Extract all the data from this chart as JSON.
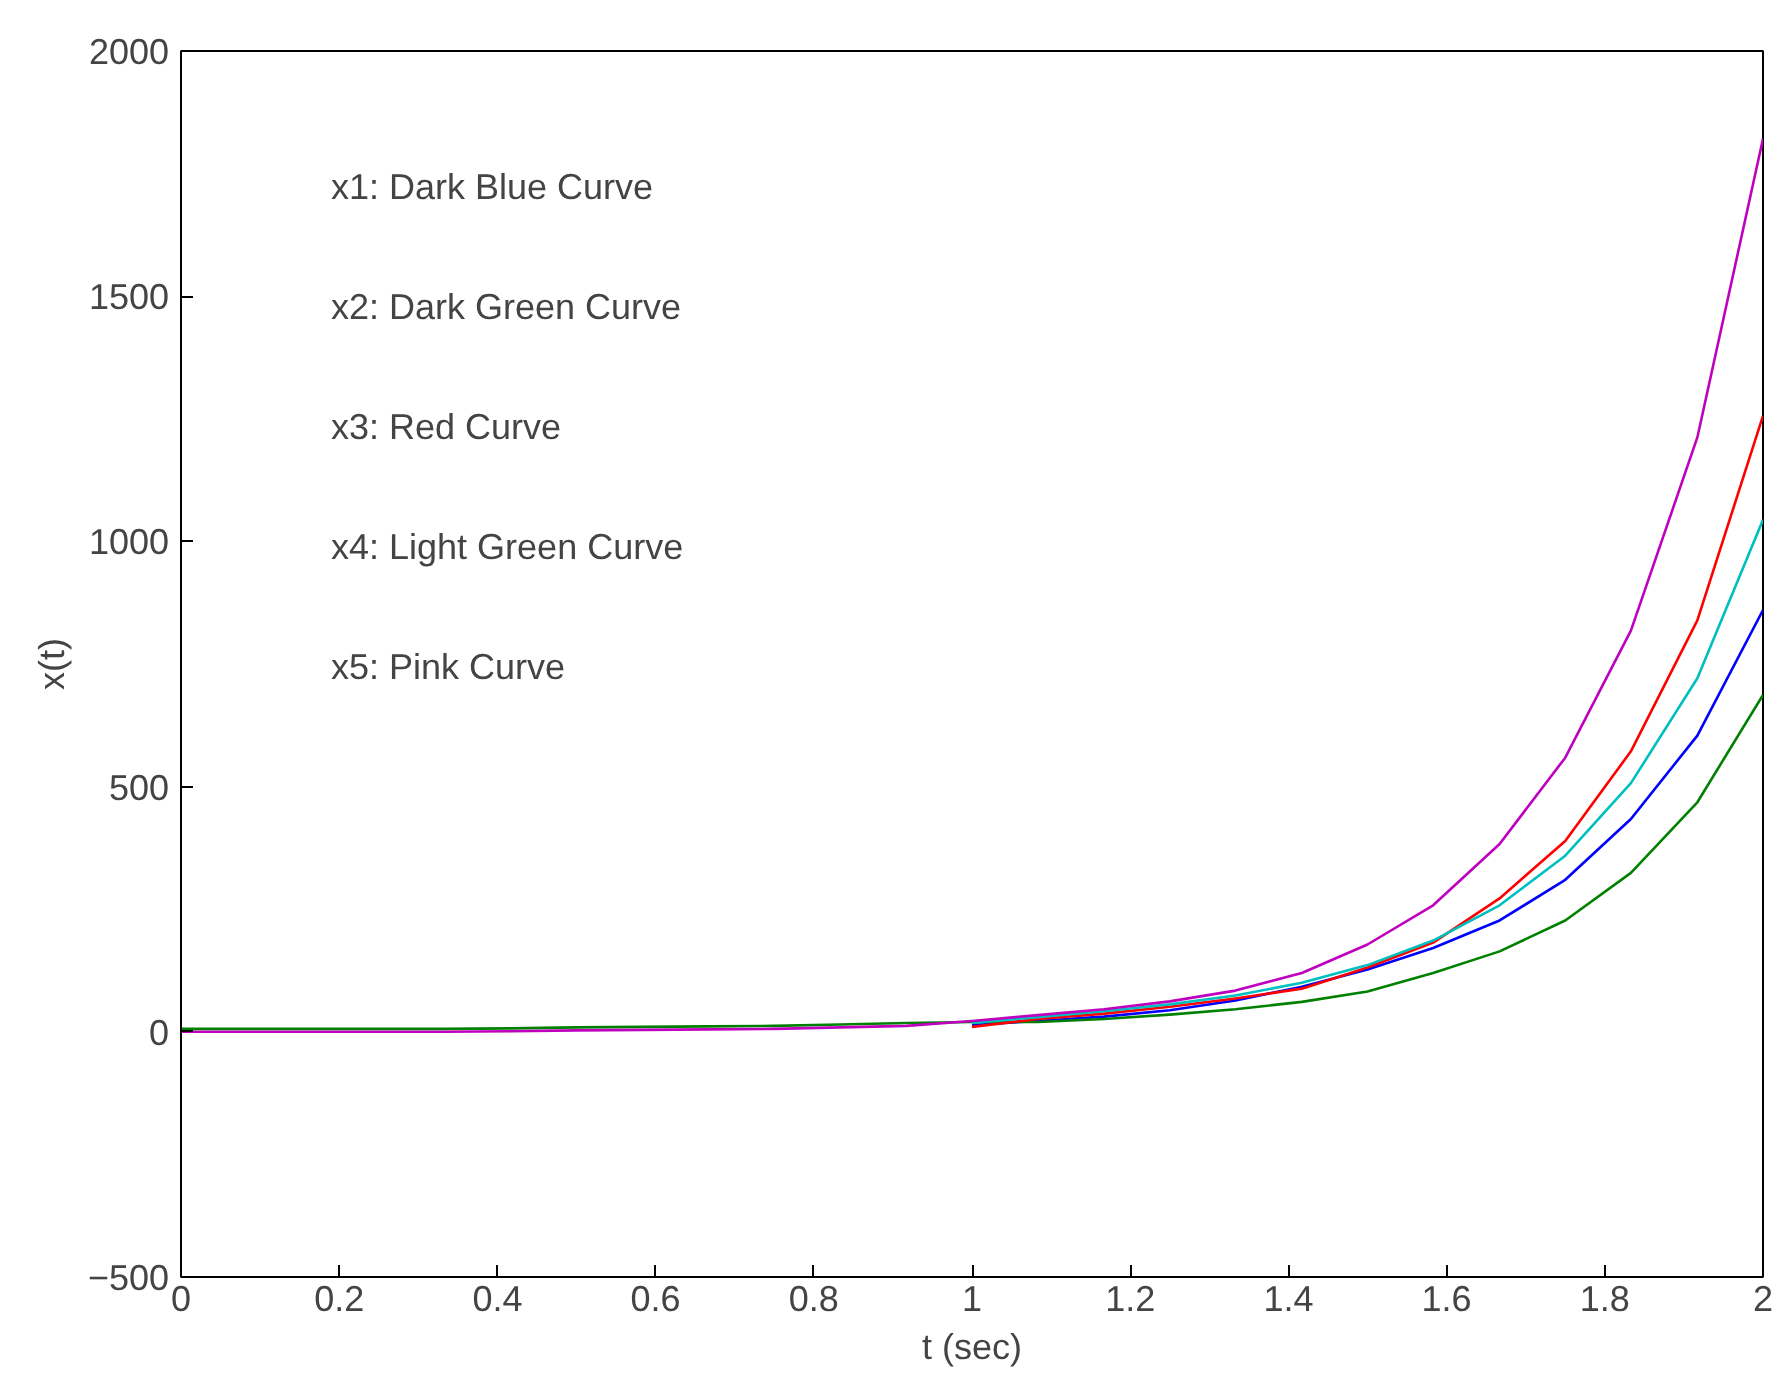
{
  "chart_data": {
    "type": "line",
    "xlabel": "t (sec)",
    "ylabel": "x(t)",
    "x": [
      0,
      0.083,
      0.167,
      0.25,
      0.333,
      0.417,
      0.5,
      0.583,
      0.667,
      0.75,
      0.833,
      0.917,
      1,
      1.083,
      1.167,
      1.25,
      1.333,
      1.417,
      1.5,
      1.583,
      1.667,
      1.75,
      1.833,
      1.917,
      2
    ],
    "xlim": [
      0,
      2
    ],
    "xticks": [
      0,
      0.2,
      0.4,
      0.6,
      0.8,
      1,
      1.2,
      1.4,
      1.6,
      1.8,
      2
    ],
    "ylim": [
      -500,
      2000
    ],
    "yticks": [
      -500,
      0,
      500,
      1000,
      1500,
      2000
    ],
    "grid": false,
    "marker": "none",
    "line_style": "solid",
    "annotations": [
      "x1: Dark Blue Curve",
      "x2: Dark Green Curve",
      "x3: Red Curve",
      "x4: Light Green Curve",
      "x5: Pink Curve"
    ],
    "series": [
      {
        "color": "#0000ff",
        "values": [
          null,
          null,
          null,
          null,
          null,
          null,
          null,
          null,
          null,
          null,
          null,
          null,
          14,
          22,
          31,
          44,
          64,
          92,
          127,
          171,
          227,
          310,
          434,
          604,
          860
        ]
      },
      {
        "color": "#008000",
        "values": [
          6,
          6,
          6,
          6,
          6,
          7,
          9,
          10,
          11,
          12,
          15,
          18,
          20,
          20,
          26,
          35,
          46,
          61,
          82,
          120,
          164,
          227,
          324,
          468,
          687
        ]
      },
      {
        "color": "#ff0000",
        "values": [
          null,
          null,
          null,
          null,
          null,
          null,
          null,
          null,
          null,
          null,
          null,
          null,
          10,
          26,
          37,
          51,
          68,
          88,
          131,
          182,
          272,
          389,
          572,
          839,
          1256
        ]
      },
      {
        "color": "#00bfbf",
        "values": [
          null,
          null,
          null,
          null,
          null,
          null,
          null,
          null,
          null,
          null,
          null,
          null,
          18,
          30,
          42,
          56,
          74,
          100,
          136,
          186,
          258,
          359,
          507,
          721,
          1044
        ]
      },
      {
        "color": "#bf00bf",
        "values": [
          0,
          0,
          0,
          0,
          0,
          1,
          3,
          4,
          5,
          6,
          9,
          12,
          22,
          34,
          46,
          62,
          84,
          120,
          178,
          258,
          383,
          559,
          818,
          1212,
          1821
        ]
      }
    ]
  }
}
